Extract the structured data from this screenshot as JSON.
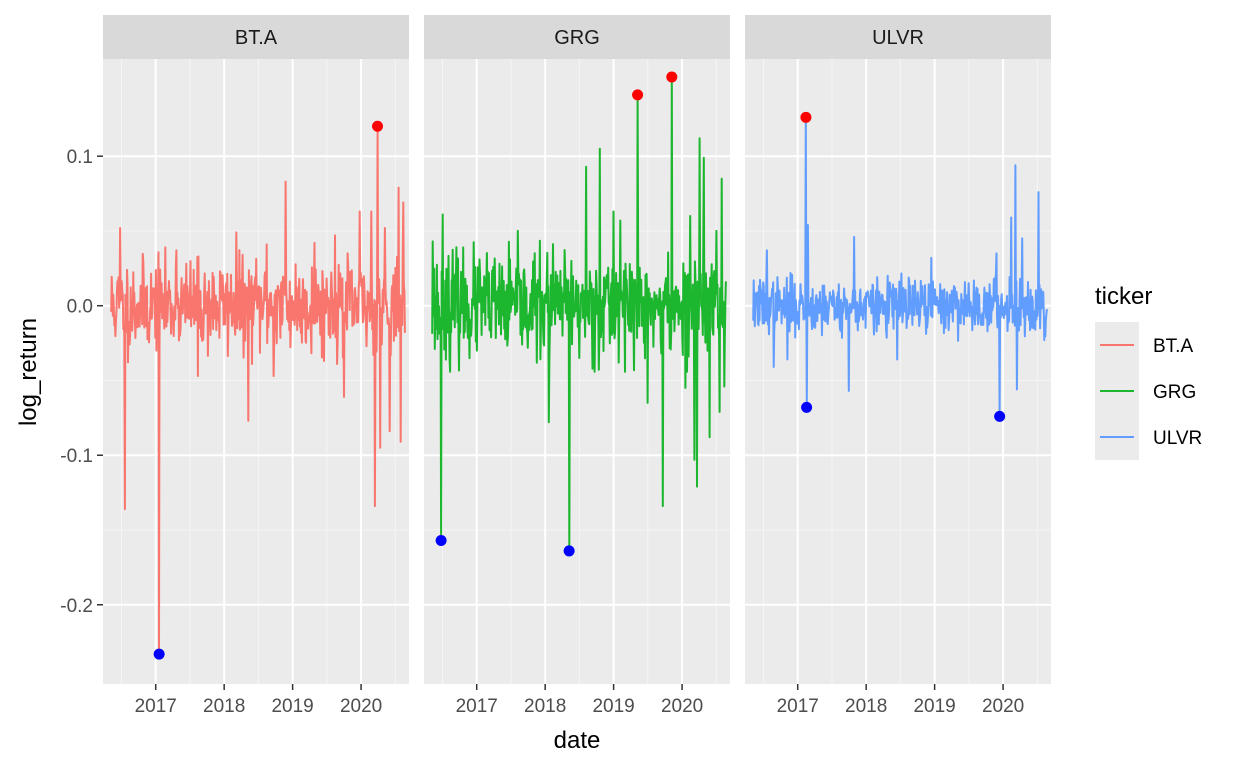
{
  "chart_data": {
    "type": "line",
    "facet_by": "ticker",
    "xlabel": "date",
    "ylabel": "log_return",
    "x_range": [
      2016.23,
      2020.7
    ],
    "ylim": [
      -0.253,
      0.165
    ],
    "x_ticks": [
      2017,
      2018,
      2019,
      2020
    ],
    "x_tick_labels": [
      "2017",
      "2018",
      "2019",
      "2020"
    ],
    "y_ticks": [
      -0.2,
      -0.1,
      0.0,
      0.1
    ],
    "y_tick_labels": [
      "-0.2",
      "-0.1",
      "0.0",
      "0.1"
    ],
    "grid": true,
    "legend": {
      "title": "ticker",
      "position": "right",
      "entries": [
        "BT.A",
        "GRG",
        "ULVR"
      ]
    },
    "highlight_colors": {
      "max": "#FF0000",
      "min": "#0000FF"
    },
    "panels": [
      {
        "name": "BT.A",
        "color": "#F8766D",
        "x_start": 2016.35,
        "x_end": 2020.64,
        "noise": 0.015,
        "seed": 11,
        "spikes": [
          {
            "x": 2016.55,
            "y": -0.136
          },
          {
            "x": 2016.48,
            "y": 0.052
          },
          {
            "x": 2017.05,
            "y": -0.233
          },
          {
            "x": 2017.3,
            "y": 0.037
          },
          {
            "x": 2017.62,
            "y": -0.047
          },
          {
            "x": 2018.18,
            "y": 0.049
          },
          {
            "x": 2018.35,
            "y": -0.077
          },
          {
            "x": 2018.62,
            "y": 0.041
          },
          {
            "x": 2018.9,
            "y": 0.083
          },
          {
            "x": 2018.72,
            "y": -0.047
          },
          {
            "x": 2019.32,
            "y": 0.042
          },
          {
            "x": 2019.62,
            "y": 0.047
          },
          {
            "x": 2019.75,
            "y": -0.061
          },
          {
            "x": 2019.98,
            "y": 0.063
          },
          {
            "x": 2020.15,
            "y": 0.063
          },
          {
            "x": 2020.2,
            "y": -0.134
          },
          {
            "x": 2020.24,
            "y": 0.12
          },
          {
            "x": 2020.28,
            "y": -0.095
          },
          {
            "x": 2020.35,
            "y": 0.052
          },
          {
            "x": 2020.42,
            "y": -0.084
          },
          {
            "x": 2020.55,
            "y": 0.079
          },
          {
            "x": 2020.58,
            "y": -0.091
          },
          {
            "x": 2020.62,
            "y": 0.069
          }
        ],
        "highlights": [
          {
            "x": 2020.24,
            "y": 0.12,
            "kind": "max"
          },
          {
            "x": 2017.05,
            "y": -0.233,
            "kind": "min"
          }
        ]
      },
      {
        "name": "GRG",
        "color": "#1CB62F",
        "x_start": 2016.35,
        "x_end": 2020.64,
        "noise": 0.017,
        "seed": 23,
        "spikes": [
          {
            "x": 2016.36,
            "y": 0.043
          },
          {
            "x": 2016.48,
            "y": -0.157
          },
          {
            "x": 2016.5,
            "y": 0.061
          },
          {
            "x": 2016.6,
            "y": -0.036
          },
          {
            "x": 2017.6,
            "y": 0.05
          },
          {
            "x": 2018.05,
            "y": -0.078
          },
          {
            "x": 2018.35,
            "y": -0.164
          },
          {
            "x": 2018.6,
            "y": 0.093
          },
          {
            "x": 2018.8,
            "y": 0.105
          },
          {
            "x": 2019.0,
            "y": 0.063
          },
          {
            "x": 2019.1,
            "y": 0.057
          },
          {
            "x": 2019.35,
            "y": 0.141
          },
          {
            "x": 2019.5,
            "y": -0.065
          },
          {
            "x": 2019.72,
            "y": -0.134
          },
          {
            "x": 2019.85,
            "y": 0.153
          },
          {
            "x": 2020.05,
            "y": -0.055
          },
          {
            "x": 2020.12,
            "y": 0.06
          },
          {
            "x": 2020.18,
            "y": -0.103
          },
          {
            "x": 2020.22,
            "y": -0.121
          },
          {
            "x": 2020.26,
            "y": 0.112
          },
          {
            "x": 2020.32,
            "y": 0.099
          },
          {
            "x": 2020.4,
            "y": -0.088
          },
          {
            "x": 2020.5,
            "y": 0.05
          },
          {
            "x": 2020.55,
            "y": -0.071
          },
          {
            "x": 2020.58,
            "y": 0.085
          },
          {
            "x": 2020.62,
            "y": -0.054
          }
        ],
        "highlights": [
          {
            "x": 2019.35,
            "y": 0.141,
            "kind": "max"
          },
          {
            "x": 2019.85,
            "y": 0.153,
            "kind": "max"
          },
          {
            "x": 2016.48,
            "y": -0.157,
            "kind": "min"
          },
          {
            "x": 2018.35,
            "y": -0.164,
            "kind": "min"
          }
        ]
      },
      {
        "name": "ULVR",
        "color": "#619CFF",
        "x_start": 2016.35,
        "x_end": 2020.64,
        "noise": 0.009,
        "seed": 37,
        "spikes": [
          {
            "x": 2016.55,
            "y": 0.037
          },
          {
            "x": 2016.65,
            "y": -0.041
          },
          {
            "x": 2016.85,
            "y": -0.036
          },
          {
            "x": 2017.12,
            "y": 0.126
          },
          {
            "x": 2017.13,
            "y": -0.068
          },
          {
            "x": 2017.15,
            "y": 0.054
          },
          {
            "x": 2017.75,
            "y": -0.057
          },
          {
            "x": 2017.82,
            "y": 0.046
          },
          {
            "x": 2018.45,
            "y": -0.036
          },
          {
            "x": 2018.95,
            "y": 0.032
          },
          {
            "x": 2019.9,
            "y": 0.035
          },
          {
            "x": 2019.95,
            "y": -0.074
          },
          {
            "x": 2020.12,
            "y": 0.059
          },
          {
            "x": 2020.18,
            "y": 0.094
          },
          {
            "x": 2020.2,
            "y": -0.056
          },
          {
            "x": 2020.28,
            "y": 0.045
          },
          {
            "x": 2020.52,
            "y": 0.076
          },
          {
            "x": 2020.6,
            "y": -0.023
          }
        ],
        "highlights": [
          {
            "x": 2017.12,
            "y": 0.126,
            "kind": "max"
          },
          {
            "x": 2017.13,
            "y": -0.068,
            "kind": "min"
          },
          {
            "x": 2019.95,
            "y": -0.074,
            "kind": "min"
          }
        ]
      }
    ]
  }
}
